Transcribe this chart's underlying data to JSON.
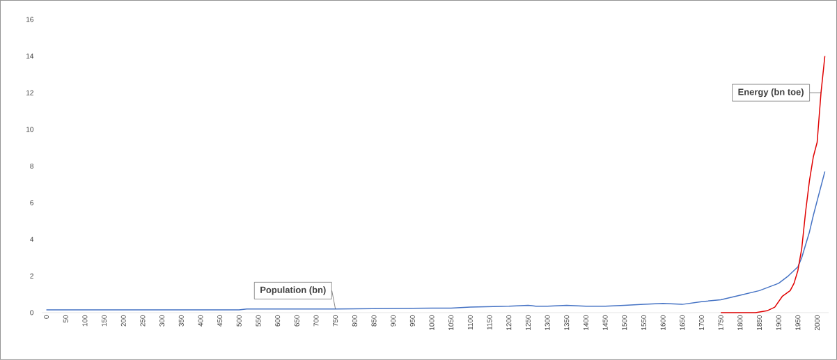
{
  "chart_data": {
    "type": "line",
    "xlim": [
      -12,
      2030
    ],
    "ylim": [
      0,
      16
    ],
    "xticks": [
      0,
      50,
      100,
      150,
      200,
      250,
      300,
      350,
      400,
      450,
      500,
      550,
      600,
      650,
      700,
      750,
      800,
      850,
      900,
      950,
      1000,
      1050,
      1100,
      1150,
      1200,
      1250,
      1300,
      1350,
      1400,
      1450,
      1500,
      1550,
      1600,
      1650,
      1700,
      1750,
      1800,
      1850,
      1900,
      1950,
      2000
    ],
    "yticks": [
      0,
      2,
      4,
      6,
      8,
      10,
      12,
      14,
      16
    ],
    "series": [
      {
        "name": "Population (bn)",
        "color": "#4472c4",
        "x": [
          0,
          500,
          520,
          750,
          1000,
          1050,
          1100,
          1200,
          1250,
          1270,
          1300,
          1350,
          1400,
          1450,
          1500,
          1550,
          1600,
          1650,
          1700,
          1750,
          1800,
          1850,
          1900,
          1925,
          1950,
          1960,
          1970,
          1980,
          1990,
          2000,
          2010,
          2020
        ],
        "values": [
          0.15,
          0.15,
          0.2,
          0.2,
          0.25,
          0.25,
          0.3,
          0.35,
          0.4,
          0.35,
          0.35,
          0.4,
          0.35,
          0.35,
          0.4,
          0.45,
          0.5,
          0.45,
          0.6,
          0.7,
          0.95,
          1.2,
          1.6,
          2.0,
          2.5,
          3.0,
          3.7,
          4.4,
          5.3,
          6.1,
          6.9,
          7.7
        ]
      },
      {
        "name": "Energy (bn toe)",
        "color": "#e00000",
        "x": [
          1750,
          1800,
          1840,
          1870,
          1890,
          1900,
          1910,
          1930,
          1940,
          1950,
          1960,
          1970,
          1980,
          1990,
          2000,
          2010,
          2020
        ],
        "values": [
          0,
          0,
          0,
          0.1,
          0.3,
          0.6,
          0.9,
          1.2,
          1.6,
          2.3,
          3.5,
          5.5,
          7.2,
          8.5,
          9.3,
          12,
          14
        ]
      }
    ]
  }
}
